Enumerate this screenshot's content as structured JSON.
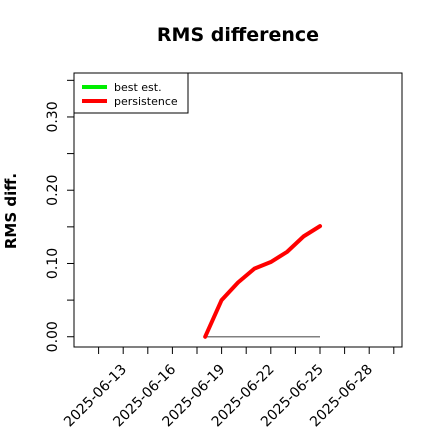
{
  "chart_data": {
    "type": "line",
    "title": "RMS difference",
    "xlabel": "",
    "ylabel": "RMS diff.",
    "x_ticks": [
      "2025-06-13",
      "2025-06-16",
      "2025-06-19",
      "2025-06-22",
      "2025-06-25",
      "2025-06-28"
    ],
    "xlim": [
      "2025-06-10",
      "2025-06-30"
    ],
    "y_ticks": [
      "0.00",
      "0.10",
      "0.20",
      "0.30"
    ],
    "ylim": [
      -0.014,
      0.36
    ],
    "legend_position": "top-left",
    "series": [
      {
        "name": "best est.",
        "color": "#00ee00",
        "x": [
          "2025-06-18",
          "2025-06-19",
          "2025-06-20",
          "2025-06-21",
          "2025-06-22",
          "2025-06-23",
          "2025-06-24",
          "2025-06-25"
        ],
        "values": [
          0,
          0,
          0,
          0,
          0,
          0,
          0,
          0
        ]
      },
      {
        "name": "persistence",
        "color": "#ff0000",
        "x": [
          "2025-06-18",
          "2025-06-19",
          "2025-06-20",
          "2025-06-21",
          "2025-06-22",
          "2025-06-23",
          "2025-06-24",
          "2025-06-25"
        ],
        "values": [
          0.0,
          0.05,
          0.074,
          0.093,
          0.102,
          0.116,
          0.137,
          0.151
        ]
      }
    ],
    "reference_line": {
      "color": "#808080",
      "x": [
        "2025-06-18",
        "2025-06-25"
      ],
      "values": [
        0,
        0
      ]
    }
  }
}
